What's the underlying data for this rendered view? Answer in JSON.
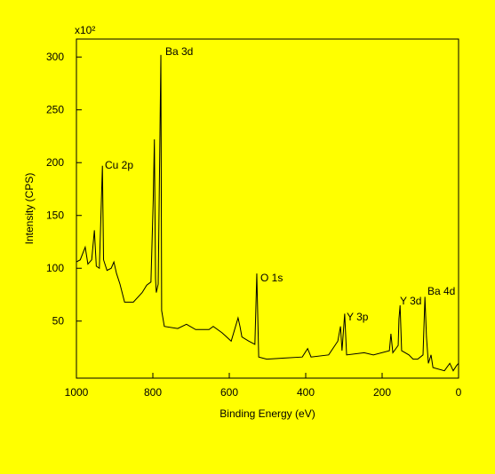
{
  "chart_data": {
    "type": "line",
    "multiplier": "x10²",
    "xlabel": "Binding Energy (eV)",
    "ylabel": "Intensity (CPS)",
    "annotations": [
      "Ba 3d",
      "Cu 2p",
      "O 1s",
      "Y 3p",
      "Y 3d",
      "Ba 4d"
    ],
    "x": [
      1000,
      990,
      977,
      970,
      960,
      953,
      948,
      940,
      932,
      929,
      920,
      909,
      902,
      895,
      886,
      874,
      851,
      828,
      816,
      805,
      799,
      796,
      793,
      791,
      786,
      779,
      777,
      770,
      735,
      712,
      688,
      653,
      642,
      619,
      595,
      577,
      572,
      567,
      549,
      533,
      528,
      523,
      502,
      456,
      409,
      395,
      386,
      340,
      316,
      309,
      305,
      298,
      293,
      247,
      223,
      181,
      177,
      172,
      158,
      156,
      153,
      149,
      130,
      119,
      107,
      93,
      88,
      84,
      79,
      72,
      67,
      37,
      23,
      14,
      5,
      0
    ],
    "series": [
      {
        "color": "#000000",
        "values": [
          106,
          108,
          120,
          104,
          108,
          136,
          102,
          100,
          197,
          108,
          98,
          100,
          106,
          95,
          85,
          68,
          68,
          77,
          84,
          87,
          165,
          222,
          90,
          77,
          85,
          302,
          60,
          45,
          43,
          47,
          42,
          42,
          45,
          39,
          31,
          53,
          45,
          35,
          31,
          28,
          95,
          16,
          14,
          15,
          16,
          24,
          16,
          18,
          31,
          45,
          22,
          57,
          18,
          20,
          18,
          22,
          38,
          20,
          27,
          52,
          65,
          22,
          18,
          14,
          14,
          18,
          73,
          35,
          10,
          18,
          6,
          3,
          10,
          3,
          8,
          10
        ]
      }
    ],
    "xlim": [
      1000,
      0
    ],
    "ylim": [
      -4,
      317
    ],
    "xticks": [
      1000,
      800,
      600,
      400,
      200,
      0
    ],
    "yticks": [
      50,
      100,
      150,
      200,
      250,
      300
    ]
  }
}
